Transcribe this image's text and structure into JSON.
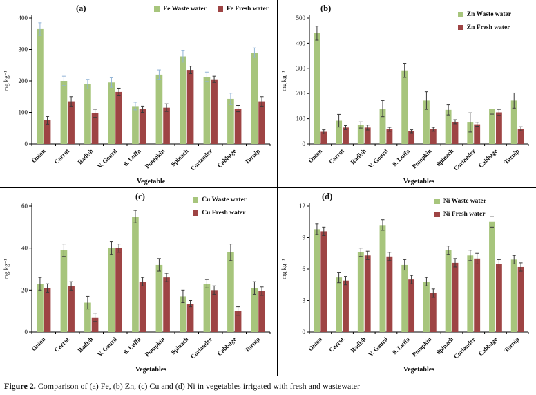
{
  "figure": {
    "caption_label": "Figure 2.",
    "caption_text": " Comparison of (a) Fe, (b) Zn, (c) Cu and (d) Ni in vegetables irrigated with fresh and wastewater"
  },
  "colors": {
    "waste_water": "#a7c57c",
    "fresh_water": "#9e4444",
    "error_bar_default": "#3a3a3a",
    "error_bar_blue": "#92b4d6",
    "axis": "#000000"
  },
  "chart_data": [
    {
      "id": "a",
      "type": "bar",
      "panel_label": "(a)",
      "ylabel": "mg kg⁻¹",
      "xlabel": "Vegetable",
      "ylim": [
        0,
        400
      ],
      "yticks": [
        0,
        100,
        200,
        300,
        400
      ],
      "grid": false,
      "legend_position": "top-right-row",
      "categories": [
        "Onion",
        "Carrot",
        "Radish",
        "V. Gourd",
        "S. Luffa",
        "Pumpkin",
        "Spinach",
        "Coriander",
        "Cabbage",
        "Turnip"
      ],
      "series": [
        {
          "name": "Fe Waste water",
          "color": "#a7c57c",
          "err_color": "#92b4d6",
          "values": [
            365,
            200,
            190,
            195,
            120,
            220,
            278,
            213,
            143,
            290
          ],
          "err": [
            20,
            15,
            15,
            15,
            12,
            15,
            18,
            15,
            18,
            15
          ]
        },
        {
          "name": "Fe Fresh water",
          "color": "#9e4444",
          "err_color": "#3a3a3a",
          "values": [
            75,
            135,
            97,
            165,
            110,
            115,
            235,
            205,
            112,
            135
          ],
          "err": [
            12,
            15,
            13,
            12,
            10,
            12,
            12,
            10,
            10,
            15
          ]
        }
      ]
    },
    {
      "id": "b",
      "type": "bar",
      "panel_label": "(b)",
      "ylabel": "mg kg⁻¹",
      "xlabel": "Vegetables",
      "ylim": [
        0,
        500
      ],
      "yticks": [
        0,
        100,
        200,
        300,
        400,
        500
      ],
      "grid": false,
      "legend_position": "top-right-column",
      "categories": [
        "Onion",
        "Carrot",
        "Radish",
        "V. Gourd",
        "S. Luffa",
        "Pumpkin",
        "Spinach",
        "Coriander",
        "Cabbage",
        "Turnip"
      ],
      "series": [
        {
          "name": "Zn Waste water",
          "color": "#a7c57c",
          "err_color": "#3a3a3a",
          "values": [
            440,
            92,
            75,
            140,
            292,
            172,
            135,
            85,
            138,
            172
          ],
          "err": [
            28,
            25,
            12,
            32,
            28,
            35,
            20,
            38,
            20,
            30
          ]
        },
        {
          "name": "Zn Fresh water",
          "color": "#9e4444",
          "err_color": "#3a3a3a",
          "values": [
            48,
            65,
            65,
            58,
            50,
            58,
            88,
            78,
            125,
            60
          ],
          "err": [
            8,
            8,
            10,
            8,
            6,
            8,
            8,
            8,
            12,
            8
          ]
        }
      ]
    },
    {
      "id": "c",
      "type": "bar",
      "panel_label": "(c)",
      "ylabel": "mg kg⁻¹",
      "xlabel": "Vegetables",
      "ylim": [
        0,
        60
      ],
      "yticks": [
        0,
        20,
        40,
        60
      ],
      "grid": false,
      "legend_position": "top-right-column",
      "categories": [
        "Onion",
        "Carrot",
        "Radish",
        "V. Gourd",
        "S. Luffa",
        "Pumpkin",
        "Spinach",
        "Coriander",
        "Cabbage",
        "Turnip"
      ],
      "series": [
        {
          "name": "Cu Waste water",
          "color": "#a7c57c",
          "err_color": "#3a3a3a",
          "values": [
            23,
            39,
            14,
            40,
            55,
            32,
            17,
            23,
            38,
            21
          ],
          "err": [
            3,
            3,
            3,
            3,
            3,
            3,
            3,
            2,
            4,
            3
          ]
        },
        {
          "name": "Cu Fresh water",
          "color": "#9e4444",
          "err_color": "#3a3a3a",
          "values": [
            21,
            22,
            7,
            40,
            24,
            26,
            13.5,
            20,
            10,
            19.5
          ],
          "err": [
            2,
            2,
            2,
            2,
            2,
            2,
            1.5,
            2,
            2,
            2
          ]
        }
      ]
    },
    {
      "id": "d",
      "type": "bar",
      "panel_label": "(d)",
      "ylabel": "mg kg⁻¹",
      "xlabel": "Vegetables",
      "ylim": [
        0,
        12
      ],
      "yticks": [
        0,
        3,
        6,
        9,
        12
      ],
      "grid": false,
      "legend_position": "top-right-column",
      "categories": [
        "Onion",
        "Carrot",
        "Radish",
        "V. Gourd",
        "S. Luffa",
        "Pumpkin",
        "Spinach",
        "Coriander",
        "Cabbage",
        "Turnip"
      ],
      "series": [
        {
          "name": "Ni Waste water",
          "color": "#a7c57c",
          "err_color": "#3a3a3a",
          "values": [
            9.8,
            5.2,
            7.6,
            10.2,
            6.4,
            4.8,
            7.8,
            7.3,
            10.5,
            6.9
          ],
          "err": [
            0.5,
            0.5,
            0.4,
            0.5,
            0.5,
            0.4,
            0.4,
            0.5,
            0.5,
            0.4
          ]
        },
        {
          "name": "Ni Fresh water",
          "color": "#9e4444",
          "err_color": "#3a3a3a",
          "values": [
            9.6,
            4.9,
            7.3,
            7.2,
            5.0,
            3.7,
            6.6,
            7.0,
            6.5,
            6.2
          ],
          "err": [
            0.4,
            0.4,
            0.4,
            0.4,
            0.4,
            0.4,
            0.4,
            0.5,
            0.4,
            0.4
          ]
        }
      ]
    }
  ]
}
